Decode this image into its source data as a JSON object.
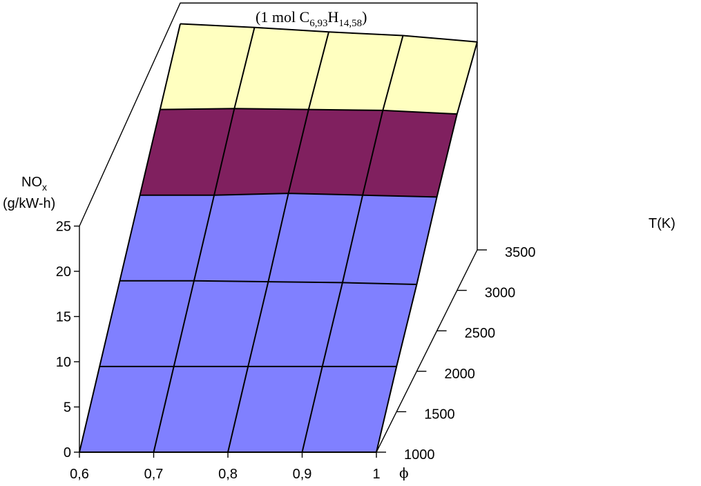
{
  "chart_data": {
    "type": "surface",
    "title_prefix": "(1 mol C",
    "title_sub1": "6,93",
    "title_mid": "H",
    "title_sub2": "14,58",
    "title_suffix": ")",
    "z_label_main": "NO",
    "z_label_sub": "x",
    "z_label_unit": "(g/kW-h)",
    "t_label": "T(K)",
    "phi_label": "ϕ",
    "phi_ticks": [
      "0,6",
      "0,7",
      "0,8",
      "0,9",
      "1"
    ],
    "phi_values": [
      0.6,
      0.7,
      0.8,
      0.9,
      1.0
    ],
    "t_ticks": [
      "1000",
      "1500",
      "2000",
      "2500",
      "3000",
      "3500"
    ],
    "t_values": [
      1000,
      1500,
      2000,
      2500,
      3000,
      3500
    ],
    "z_ticks": [
      "0",
      "5",
      "10",
      "15",
      "20",
      "25"
    ],
    "zlim": [
      0,
      25
    ],
    "surface_grid": {
      "phi": [
        0.6,
        0.7,
        0.8,
        0.9,
        1.0
      ],
      "T": [
        1000,
        1500,
        2000,
        2500,
        3000,
        3500
      ],
      "NOx_g_per_kWh": [
        [
          0.0,
          0.0,
          0.0,
          0.0,
          0.0
        ],
        [
          5.0,
          5.0,
          5.0,
          5.0,
          5.0
        ],
        [
          10.0,
          10.0,
          9.9,
          9.8,
          9.6
        ],
        [
          15.0,
          15.0,
          15.2,
          15.0,
          14.8
        ],
        [
          20.0,
          20.1,
          20.0,
          19.9,
          19.5
        ],
        [
          25.0,
          24.6,
          24.1,
          23.7,
          23.0
        ]
      ]
    },
    "color_bands": [
      {
        "range": [
          0,
          15
        ],
        "color": "#8080ff"
      },
      {
        "range": [
          15,
          20
        ],
        "color": "#80205f"
      },
      {
        "range": [
          20,
          25
        ],
        "color": "#ffffc0"
      },
      {
        "range": [
          25,
          28
        ],
        "color": "#a0e0e0"
      },
      {
        "range": [
          28,
          30
        ],
        "color": "#600080"
      }
    ],
    "grid": true
  }
}
